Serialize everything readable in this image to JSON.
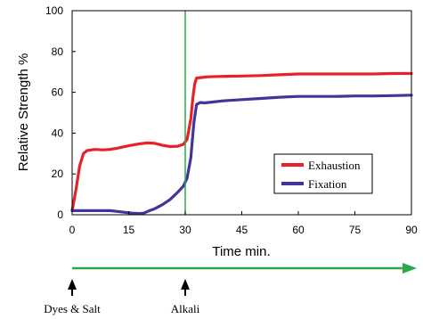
{
  "chart_data": {
    "type": "line",
    "xlabel": "Time min.",
    "ylabel": "Relative Strength %",
    "xlim": [
      0,
      90
    ],
    "ylim": [
      0,
      100
    ],
    "x_ticks": [
      0,
      15,
      30,
      45,
      60,
      75,
      90
    ],
    "y_ticks": [
      0,
      20,
      40,
      60,
      80,
      100
    ],
    "x_tick_labels": [
      "0",
      "15",
      "30",
      "45",
      "60",
      "75",
      "90"
    ],
    "y_tick_labels": [
      "0",
      "20",
      "40",
      "60",
      "80",
      "100"
    ],
    "grid": false,
    "legend_position": "right-center",
    "vline_x": 30,
    "vline_color": "#2aa84a",
    "series": [
      {
        "name": "Exhaustion",
        "color": "#e8202a",
        "points": [
          [
            0,
            2
          ],
          [
            1,
            12
          ],
          [
            2,
            24
          ],
          [
            3,
            30
          ],
          [
            4,
            31.5
          ],
          [
            6,
            32
          ],
          [
            8,
            31.8
          ],
          [
            10,
            32
          ],
          [
            12,
            32.6
          ],
          [
            15,
            33.8
          ],
          [
            18,
            34.8
          ],
          [
            20,
            35.2
          ],
          [
            22,
            35
          ],
          [
            24,
            34
          ],
          [
            26,
            33.4
          ],
          [
            28,
            33.6
          ],
          [
            29.5,
            34.5
          ],
          [
            30.5,
            37
          ],
          [
            31.5,
            47
          ],
          [
            32,
            57
          ],
          [
            32.5,
            64
          ],
          [
            33,
            67
          ],
          [
            34,
            67.2
          ],
          [
            36,
            67.6
          ],
          [
            40,
            67.8
          ],
          [
            45,
            68
          ],
          [
            50,
            68.2
          ],
          [
            55,
            68.6
          ],
          [
            60,
            69
          ],
          [
            65,
            69
          ],
          [
            70,
            69
          ],
          [
            75,
            69
          ],
          [
            80,
            69
          ],
          [
            85,
            69.2
          ],
          [
            90,
            69.2
          ]
        ]
      },
      {
        "name": "Fixation",
        "color": "#46339a",
        "points": [
          [
            0,
            2
          ],
          [
            5,
            2
          ],
          [
            10,
            2
          ],
          [
            12,
            1.6
          ],
          [
            14,
            1.2
          ],
          [
            16,
            0.8
          ],
          [
            18,
            0.6
          ],
          [
            19,
            0.8
          ],
          [
            20,
            1.6
          ],
          [
            22,
            3
          ],
          [
            24,
            5
          ],
          [
            26,
            7.5
          ],
          [
            28,
            11
          ],
          [
            29.5,
            14
          ],
          [
            30.5,
            18
          ],
          [
            31.5,
            28
          ],
          [
            32.3,
            45
          ],
          [
            33,
            54
          ],
          [
            34,
            55
          ],
          [
            35,
            54.8
          ],
          [
            37,
            55.2
          ],
          [
            40,
            55.8
          ],
          [
            45,
            56.4
          ],
          [
            50,
            57
          ],
          [
            55,
            57.6
          ],
          [
            60,
            58
          ],
          [
            65,
            58
          ],
          [
            70,
            58
          ],
          [
            75,
            58.2
          ],
          [
            80,
            58.2
          ],
          [
            85,
            58.4
          ],
          [
            90,
            58.6
          ]
        ]
      }
    ],
    "timeline": {
      "color": "#2aa84a",
      "events": [
        {
          "x": 0,
          "label": "Dyes & Salt"
        },
        {
          "x": 30,
          "label": "Alkali"
        }
      ]
    }
  }
}
